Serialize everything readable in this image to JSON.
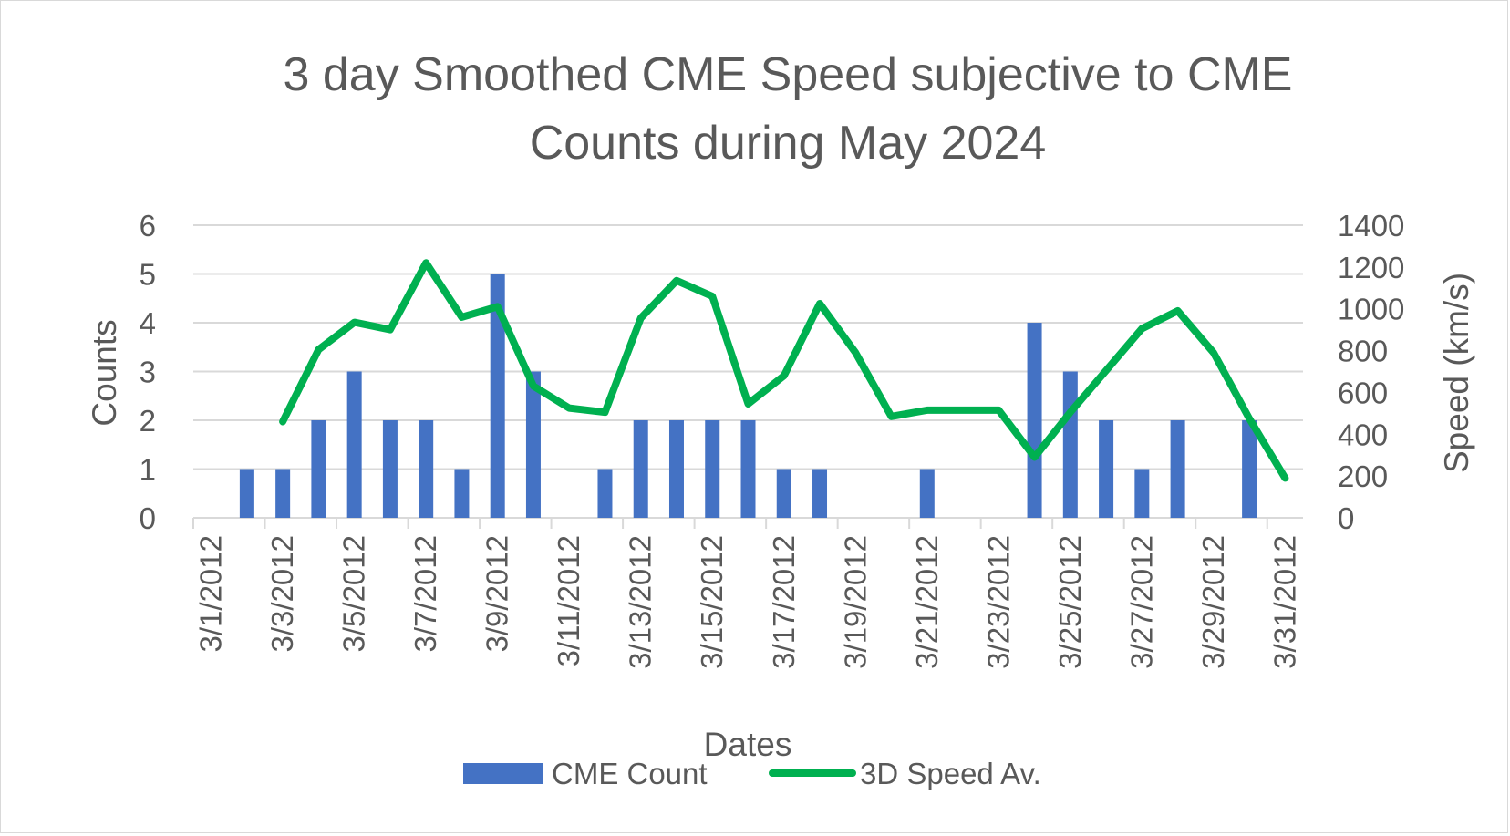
{
  "chart_data": {
    "type": "bar+line",
    "title": "3 day Smoothed CME Speed subjective to CME Counts during May 2024",
    "title_lines": [
      "3 day Smoothed CME Speed subjective to CME",
      "Counts during May 2024"
    ],
    "xlabel": "Dates",
    "ylabel": "Counts",
    "y2label": "Speed (km/s)",
    "ylim": [
      0,
      6
    ],
    "y2lim": [
      0,
      1400
    ],
    "yticks": [
      "0",
      "1",
      "2",
      "3",
      "4",
      "5",
      "6"
    ],
    "y2ticks": [
      "0",
      "200",
      "400",
      "600",
      "800",
      "1000",
      "1200",
      "1400"
    ],
    "categories": [
      "3/1/2012",
      "3/2/2012",
      "3/3/2012",
      "3/4/2012",
      "3/5/2012",
      "3/6/2012",
      "3/7/2012",
      "3/8/2012",
      "3/9/2012",
      "3/10/2012",
      "3/11/2012",
      "3/12/2012",
      "3/13/2012",
      "3/14/2012",
      "3/15/2012",
      "3/16/2012",
      "3/17/2012",
      "3/18/2012",
      "3/19/2012",
      "3/20/2012",
      "3/21/2012",
      "3/22/2012",
      "3/23/2012",
      "3/24/2012",
      "3/25/2012",
      "3/26/2012",
      "3/27/2012",
      "3/28/2012",
      "3/29/2012",
      "3/30/2012",
      "3/31/2012"
    ],
    "tick_labels": [
      "3/1/2012",
      "3/3/2012",
      "3/5/2012",
      "3/7/2012",
      "3/9/2012",
      "3/11/2012",
      "3/13/2012",
      "3/15/2012",
      "3/17/2012",
      "3/19/2012",
      "3/21/2012",
      "3/23/2012",
      "3/25/2012",
      "3/27/2012",
      "3/29/2012",
      "3/31/2012"
    ],
    "grid": true,
    "legend_position": "bottom",
    "series": [
      {
        "name": "CME Count",
        "type": "bar",
        "axis": "left",
        "color": "#4472c4",
        "values": [
          0,
          1,
          1,
          2,
          3,
          2,
          2,
          1,
          5,
          3,
          0,
          1,
          2,
          2,
          2,
          2,
          1,
          1,
          0,
          0,
          1,
          0,
          0,
          4,
          3,
          2,
          1,
          2,
          0,
          2,
          0
        ]
      },
      {
        "name": "3D Speed Av.",
        "type": "line",
        "axis": "right",
        "color": "#00b050",
        "values": [
          null,
          null,
          460,
          805,
          935,
          900,
          1220,
          960,
          1010,
          630,
          525,
          505,
          955,
          1135,
          1060,
          545,
          680,
          1025,
          790,
          485,
          515,
          515,
          515,
          290,
          505,
          705,
          905,
          990,
          790,
          475,
          190
        ]
      }
    ]
  },
  "colors": {
    "grid": "#d9d9d9",
    "text": "#595959",
    "bar": "#4472c4",
    "line": "#00b050"
  }
}
